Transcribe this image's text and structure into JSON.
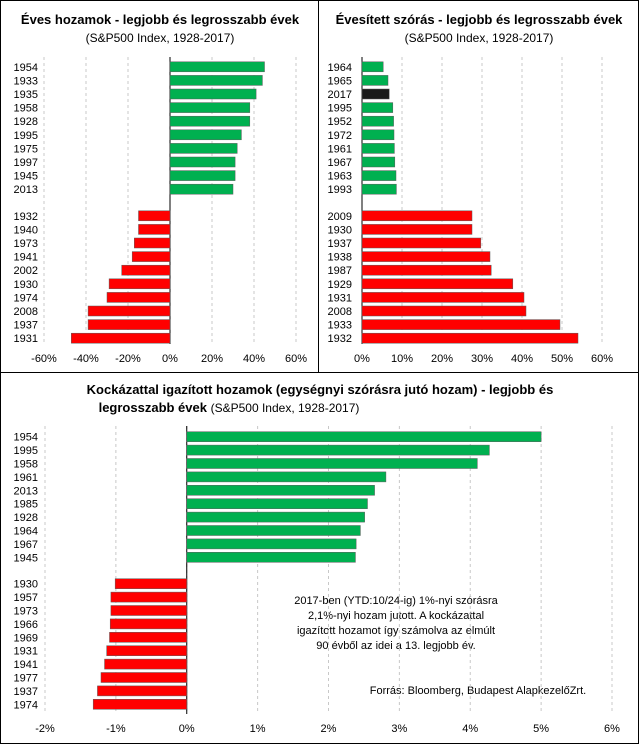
{
  "colors": {
    "positive": "#00b050",
    "negative": "#ff0000",
    "highlight": "#1a1a1a",
    "bar_stroke": "#5a5a5a"
  },
  "chart_data": [
    {
      "id": "chart1",
      "type": "bar",
      "orientation": "horizontal",
      "title": "Éves hozamok - legjobb és legrosszabb évek",
      "subtitle": "(S&P500 Index, 1928-2017)",
      "xlim": [
        -0.6,
        0.6
      ],
      "xticks": [
        -0.6,
        -0.4,
        -0.2,
        0,
        0.2,
        0.4,
        0.6
      ],
      "xtick_labels": [
        "-60%",
        "-40%",
        "-20%",
        "0%",
        "20%",
        "40%",
        "60%"
      ],
      "grid": true,
      "categories_top": [
        "1954",
        "1933",
        "1935",
        "1958",
        "1928",
        "1995",
        "1975",
        "1997",
        "1945",
        "2013"
      ],
      "values_top": [
        0.45,
        0.44,
        0.41,
        0.38,
        0.38,
        0.34,
        0.32,
        0.31,
        0.31,
        0.3
      ],
      "categories_bottom": [
        "1932",
        "1940",
        "1973",
        "1941",
        "2002",
        "1930",
        "1974",
        "2008",
        "1937",
        "1931"
      ],
      "values_bottom": [
        -0.15,
        -0.15,
        -0.17,
        -0.18,
        -0.23,
        -0.29,
        -0.3,
        -0.39,
        -0.39,
        -0.47
      ]
    },
    {
      "id": "chart2",
      "type": "bar",
      "orientation": "horizontal",
      "title": "Évesített szórás - legjobb és legrosszabb évek",
      "subtitle": "(S&P500 Index, 1928-2017)",
      "xlim": [
        0,
        0.6
      ],
      "xticks": [
        0,
        0.1,
        0.2,
        0.3,
        0.4,
        0.5,
        0.6
      ],
      "xtick_labels": [
        "0%",
        "10%",
        "20%",
        "30%",
        "40%",
        "50%",
        "60%"
      ],
      "grid": true,
      "categories_top": [
        "1964",
        "1965",
        "2017",
        "1995",
        "1952",
        "1972",
        "1961",
        "1967",
        "1963",
        "1993"
      ],
      "values_top": [
        0.053,
        0.065,
        0.068,
        0.077,
        0.079,
        0.08,
        0.081,
        0.082,
        0.085,
        0.086
      ],
      "highlight_category": "2017",
      "categories_bottom": [
        "2009",
        "1930",
        "1937",
        "1938",
        "1987",
        "1929",
        "1931",
        "2008",
        "1933",
        "1932"
      ],
      "values_bottom": [
        0.275,
        0.275,
        0.297,
        0.32,
        0.323,
        0.377,
        0.405,
        0.41,
        0.495,
        0.54
      ]
    },
    {
      "id": "chart3",
      "type": "bar",
      "orientation": "horizontal",
      "title": "Kockázattal igazított hozamok (egységnyi szórásra jutó hozam) - legjobb és",
      "title_line2": "legrosszabb évek",
      "subtitle": "(S&P500 Index, 1928-2017)",
      "xlim": [
        -0.02,
        0.06
      ],
      "xticks": [
        -0.02,
        -0.01,
        0,
        0.01,
        0.02,
        0.03,
        0.04,
        0.05,
        0.06
      ],
      "xtick_labels": [
        "-2%",
        "-1%",
        "0%",
        "1%",
        "2%",
        "3%",
        "4%",
        "5%",
        "6%"
      ],
      "grid": true,
      "categories_top": [
        "1954",
        "1995",
        "1958",
        "1961",
        "2013",
        "1985",
        "1928",
        "1964",
        "1967",
        "1945"
      ],
      "values_top": [
        0.05,
        0.0427,
        0.041,
        0.0281,
        0.0265,
        0.0255,
        0.0251,
        0.0245,
        0.0239,
        0.0238
      ],
      "categories_bottom": [
        "1930",
        "1957",
        "1973",
        "1966",
        "1969",
        "1931",
        "1941",
        "1977",
        "1937",
        "1974"
      ],
      "values_bottom": [
        -0.0101,
        -0.0107,
        -0.0107,
        -0.0108,
        -0.0109,
        -0.0113,
        -0.0116,
        -0.0121,
        -0.0126,
        -0.0132
      ],
      "annotation": [
        "2017-ben (YTD:10/24-ig) 1%-nyi szórásra",
        "2,1%-nyi hozam jutott. A kockázattal",
        "igazított hozamot így számolva az elmúlt",
        "90 évből az idei a 13. legjobb év."
      ],
      "source": "Forrás: Bloomberg, Budapest AlapkezelőZrt."
    }
  ]
}
